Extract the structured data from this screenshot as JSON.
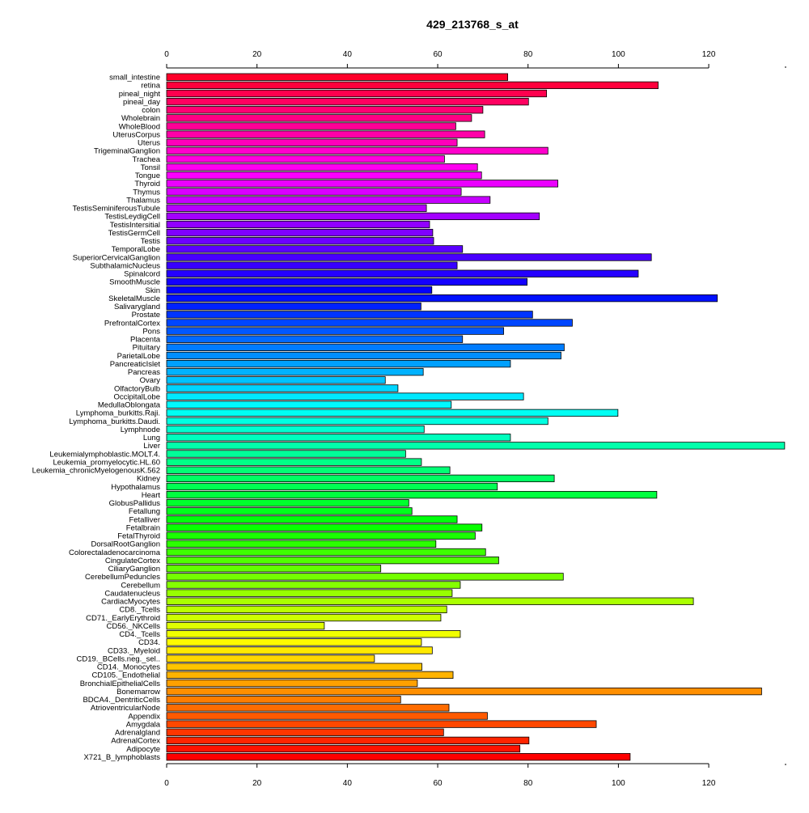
{
  "chart_data": {
    "type": "bar",
    "orientation": "horizontal",
    "title": "429_213768_s_at",
    "xlabel": "",
    "ylabel": "",
    "xlim": [
      0,
      137
    ],
    "xticks": [
      0,
      20,
      40,
      60,
      80,
      100,
      120
    ],
    "xtick_labels": [
      "0",
      "20",
      "40",
      "60",
      "80",
      "100",
      "120"
    ],
    "grid": false,
    "legend": "none",
    "categories": [
      "small_intestine",
      "retina",
      "pineal_night",
      "pineal_day",
      "colon",
      "Wholebrain",
      "WholeBlood",
      "UterusCorpus",
      "Uterus",
      "TrigeminalGanglion",
      "Trachea",
      "Tonsil",
      "Tongue",
      "Thyroid",
      "Thymus",
      "Thalamus",
      "TestisSeminiferousTubule",
      "TestisLeydigCell",
      "TestisIntersitial",
      "TestisGermCell",
      "Testis",
      "TemporalLobe",
      "SuperiorCervicalGanglion",
      "SubthalamicNucleus",
      "Spinalcord",
      "SmoothMuscle",
      "Skin",
      "SkeletalMuscle",
      "Salivarygland",
      "Prostate",
      "PrefrontalCortex",
      "Pons",
      "Placenta",
      "Pituitary",
      "ParietalLobe",
      "PancreaticIslet",
      "Pancreas",
      "Ovary",
      "OlfactoryBulb",
      "OccipitalLobe",
      "MedullaOblongata",
      "Lymphoma_burkitts.Raji.",
      "Lymphoma_burkitts.Daudi.",
      "Lymphnode",
      "Lung",
      "Liver",
      "Leukemialymphoblastic.MOLT.4.",
      "Leukemia_promyelocytic.HL.60",
      "Leukemia_chronicMyelogenousK.562",
      "Kidney",
      "Hypothalamus",
      "Heart",
      "GlobusPallidus",
      "Fetallung",
      "Fetalliver",
      "Fetalbrain",
      "FetalThyroid",
      "DorsalRootGanglion",
      "Colorectaladenocarcinoma",
      "CingulateCortex",
      "CiliaryGanglion",
      "CerebellumPeduncles",
      "Cerebellum",
      "Caudatenucleus",
      "CardiacMyocytes",
      "CD8._Tcells",
      "CD71._EarlyErythroid",
      "CD56._NKCells",
      "CD4._Tcells",
      "CD34.",
      "CD33._Myeloid",
      "CD19._BCells.neg._sel..",
      "CD14._Monocytes",
      "CD105._Endothelial",
      "BronchialEpithelialCells",
      "Bonemarrow",
      "BDCA4._DentriticCells",
      "AtrioventricularNode",
      "Appendix",
      "Amygdala",
      "Adrenalgland",
      "AdrenalCortex",
      "Adipocyte",
      "X721_B_lymphoblasts"
    ],
    "values": [
      75.5,
      108.8,
      84.1,
      80.1,
      70.0,
      67.5,
      64.0,
      70.4,
      64.3,
      84.4,
      61.5,
      68.8,
      69.7,
      86.6,
      65.2,
      71.6,
      57.5,
      82.5,
      58.2,
      58.9,
      59.1,
      65.5,
      107.3,
      64.3,
      104.4,
      79.8,
      58.7,
      121.9,
      56.3,
      81.0,
      89.8,
      74.6,
      65.5,
      88.0,
      87.3,
      76.1,
      56.8,
      48.4,
      51.2,
      79.0,
      63.0,
      99.9,
      84.4,
      57.0,
      76.1,
      136.8,
      52.9,
      56.4,
      62.7,
      85.8,
      73.2,
      108.5,
      53.6,
      54.3,
      64.3,
      69.8,
      68.3,
      59.6,
      70.6,
      73.5,
      47.4,
      87.8,
      65.0,
      63.2,
      116.6,
      62.0,
      60.7,
      34.9,
      65.0,
      56.4,
      58.8,
      46.0,
      56.5,
      63.4,
      55.5,
      131.7,
      51.8,
      62.5,
      71.0,
      95.1,
      61.3,
      80.2,
      78.2,
      102.6
    ]
  }
}
